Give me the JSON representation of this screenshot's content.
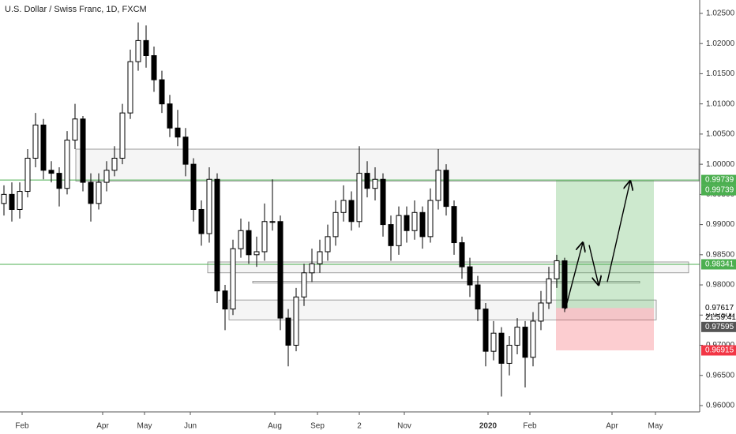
{
  "chart_data": {
    "type": "candlestick",
    "title": "U.S. Dollar / Swiss Franc, 1D, FXCM",
    "open": [
      0.9935,
      0.995,
      0.9925,
      0.9955,
      1.001,
      1.0065,
      0.999,
      0.9985,
      0.996,
      1.004,
      1.0075,
      0.997,
      0.9935,
      0.997,
      0.999,
      1.001,
      1.0085,
      1.017,
      1.0205,
      1.018,
      1.014,
      1.01,
      1.006,
      1.0045,
      1.0,
      0.9925,
      0.9885,
      0.9975,
      0.979,
      0.976,
      0.986,
      0.989,
      0.985,
      0.9855,
      0.9905,
      0.9905,
      0.9745,
      0.97,
      0.978,
      0.982,
      0.9835,
      0.9855,
      0.988,
      0.992,
      0.994,
      0.9905,
      0.9985,
      0.996,
      0.9975,
      0.99,
      0.9865,
      0.9915,
      0.989,
      0.992,
      0.988,
      0.994,
      0.999,
      0.993,
      0.987,
      0.983,
      0.98,
      0.976,
      0.969,
      0.972,
      0.967,
      0.97,
      0.973,
      0.968,
      0.974,
      0.977,
      0.981,
      0.984
    ],
    "high": [
      0.9965,
      0.997,
      0.997,
      1.0025,
      1.0085,
      1.0075,
      1.0005,
      0.9995,
      1.0055,
      1.01,
      1.008,
      0.9985,
      0.9985,
      1.0005,
      1.003,
      1.01,
      1.019,
      1.0235,
      1.023,
      1.0195,
      1.0155,
      1.0115,
      1.009,
      1.006,
      1.001,
      0.994,
      0.9995,
      0.9985,
      0.98,
      0.9875,
      0.991,
      0.9905,
      0.988,
      0.9935,
      0.9975,
      0.9915,
      0.976,
      0.9795,
      0.9835,
      0.986,
      0.9875,
      0.99,
      0.994,
      0.9965,
      0.9955,
      1.003,
      1.0005,
      0.9995,
      0.9985,
      0.9915,
      0.993,
      0.993,
      0.994,
      0.993,
      0.996,
      1.0025,
      1.0,
      0.994,
      0.988,
      0.9845,
      0.9815,
      0.977,
      0.974,
      0.973,
      0.9715,
      0.9745,
      0.974,
      0.9755,
      0.979,
      0.983,
      0.985,
      0.9845
    ],
    "low": [
      0.9915,
      0.9905,
      0.991,
      0.9945,
      0.9995,
      0.9975,
      0.997,
      0.993,
      0.995,
      1.0025,
      0.9955,
      0.9905,
      0.9925,
      0.9955,
      0.998,
      1.0,
      1.0075,
      1.0155,
      1.016,
      1.012,
      1.0085,
      1.0045,
      1.003,
      0.998,
      0.9905,
      0.9865,
      0.987,
      0.977,
      0.9725,
      0.975,
      0.9845,
      0.9835,
      0.983,
      0.984,
      0.989,
      0.9725,
      0.9665,
      0.969,
      0.9765,
      0.9805,
      0.982,
      0.984,
      0.9865,
      0.9905,
      0.989,
      0.9895,
      0.9945,
      0.994,
      0.988,
      0.984,
      0.985,
      0.987,
      0.9875,
      0.986,
      0.987,
      0.9925,
      0.9915,
      0.985,
      0.981,
      0.978,
      0.974,
      0.9665,
      0.9675,
      0.9615,
      0.965,
      0.9685,
      0.963,
      0.9665,
      0.9725,
      0.976,
      0.9795,
      0.9755
    ],
    "close": [
      0.995,
      0.9925,
      0.9955,
      1.001,
      1.0065,
      0.999,
      0.9985,
      0.996,
      1.004,
      1.0075,
      0.997,
      0.9935,
      0.997,
      0.999,
      1.001,
      1.0085,
      1.017,
      1.0205,
      1.018,
      1.014,
      1.01,
      1.006,
      1.0045,
      1.0,
      0.9925,
      0.9885,
      0.9975,
      0.979,
      0.976,
      0.986,
      0.989,
      0.985,
      0.9855,
      0.9905,
      0.9905,
      0.9745,
      0.97,
      0.978,
      0.982,
      0.9835,
      0.9855,
      0.988,
      0.992,
      0.994,
      0.9905,
      0.9985,
      0.996,
      0.9975,
      0.99,
      0.9865,
      0.9915,
      0.989,
      0.992,
      0.988,
      0.994,
      0.999,
      0.993,
      0.987,
      0.983,
      0.98,
      0.976,
      0.969,
      0.972,
      0.967,
      0.97,
      0.973,
      0.968,
      0.974,
      0.977,
      0.981,
      0.984,
      0.9762
    ],
    "xlim": [
      -0.5,
      88
    ],
    "xticks": [
      {
        "value": 2.3,
        "label": "Feb"
      },
      {
        "value": 12.5,
        "label": "Apr"
      },
      {
        "value": 17.8,
        "label": "May"
      },
      {
        "value": 23.6,
        "label": "Jun"
      },
      {
        "value": 34.3,
        "label": "Aug"
      },
      {
        "value": 39.7,
        "label": "Sep"
      },
      {
        "value": 45,
        "label": "2"
      },
      {
        "value": 50.7,
        "label": "Nov"
      },
      {
        "value": 61.3,
        "label": "2020"
      },
      {
        "value": 66.6,
        "label": "Feb"
      },
      {
        "value": 77,
        "label": "Apr"
      },
      {
        "value": 82.5,
        "label": "May"
      }
    ],
    "ylim": [
      0.95895,
      1.02722
    ],
    "yticks": [
      {
        "value": 0.96,
        "label": "0.96000"
      },
      {
        "value": 0.965,
        "label": "0.96500"
      },
      {
        "value": 0.97,
        "label": "0.97000"
      },
      {
        "value": 0.975,
        "label": "0.97500"
      },
      {
        "value": 0.98,
        "label": "0.98000"
      },
      {
        "value": 0.985,
        "label": "0.98500"
      },
      {
        "value": 0.99,
        "label": "0.99000"
      },
      {
        "value": 0.995,
        "label": "0.99500"
      },
      {
        "value": 1.0,
        "label": "1.00000"
      },
      {
        "value": 1.005,
        "label": "1.00500"
      },
      {
        "value": 1.01,
        "label": "1.01000"
      },
      {
        "value": 1.015,
        "label": "1.01500"
      },
      {
        "value": 1.02,
        "label": "1.02000"
      },
      {
        "value": 1.025,
        "label": "1.02500"
      }
    ],
    "zones": [
      {
        "top": 1.0025,
        "bottom": 0.9972,
        "x0": 9.1,
        "x1": 88
      },
      {
        "top": 0.9838,
        "bottom": 0.982,
        "x0": 25.8,
        "x1": 86.7
      },
      {
        "top": 0.9775,
        "bottom": 0.9742,
        "x0": 28.5,
        "x1": 82.6
      },
      {
        "top": 0.9806,
        "bottom": 0.9803,
        "x0": 31.5,
        "x1": 80.5
      }
    ],
    "hlines": [
      {
        "value": 0.99739,
        "color": "#4caf50"
      },
      {
        "value": 0.98341,
        "color": "#4caf50"
      }
    ],
    "position": {
      "entry": 0.97617,
      "target": 0.99739,
      "stop": 0.96915,
      "x0": 69.9,
      "x1": 82.3
    },
    "arrows": [
      [
        71.1,
        0.976,
        73.3,
        0.987
      ],
      [
        74.1,
        0.9866,
        75.3,
        0.98
      ],
      [
        76.4,
        0.9805,
        79.3,
        0.9972
      ]
    ],
    "price_tags": [
      {
        "value": 0.99739,
        "color": "#4caf50"
      },
      {
        "value": 0.99739,
        "color": "#4caf50"
      },
      {
        "value": 0.98341,
        "color": "#4caf50"
      },
      {
        "value": 0.97617,
        "color": "#ffffff"
      },
      {
        "value": 0.97595,
        "color": "#555555"
      },
      {
        "value": 0.96915,
        "color": "#f23645"
      }
    ],
    "countdown": "21:59:41"
  }
}
